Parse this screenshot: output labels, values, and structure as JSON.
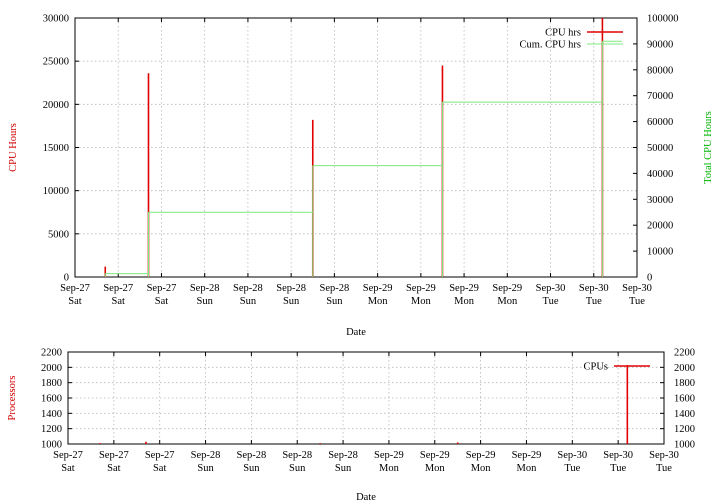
{
  "chart_data": [
    {
      "type": "line",
      "xlabel": "Date",
      "ylabel": "CPU Hours",
      "y2label": "Total CPU Hours",
      "ylim": [
        0,
        30000
      ],
      "y2lim": [
        0,
        100000
      ],
      "yticks": [
        0,
        5000,
        10000,
        15000,
        20000,
        25000,
        30000
      ],
      "y2ticks": [
        0,
        10000,
        20000,
        30000,
        40000,
        50000,
        60000,
        70000,
        80000,
        90000,
        100000
      ],
      "xticks": [
        [
          "Sep-27",
          "Sat"
        ],
        [
          "Sep-27",
          "Sat"
        ],
        [
          "Sep-27",
          "Sat"
        ],
        [
          "Sep-28",
          "Sun"
        ],
        [
          "Sep-28",
          "Sun"
        ],
        [
          "Sep-28",
          "Sun"
        ],
        [
          "Sep-28",
          "Sun"
        ],
        [
          "Sep-29",
          "Mon"
        ],
        [
          "Sep-29",
          "Mon"
        ],
        [
          "Sep-29",
          "Mon"
        ],
        [
          "Sep-29",
          "Mon"
        ],
        [
          "Sep-30",
          "Tue"
        ],
        [
          "Sep-30",
          "Tue"
        ],
        [
          "Sep-30",
          "Tue"
        ]
      ],
      "legend_position": "top-right",
      "grid": true,
      "series": [
        {
          "name": "CPU hrs",
          "axis": "left",
          "color": "#e00000",
          "spikes": [
            [
              0.7,
              1200
            ],
            [
              1.7,
              23600
            ],
            [
              5.5,
              18200
            ],
            [
              8.5,
              24500
            ],
            [
              12.2,
              30000
            ]
          ]
        },
        {
          "name": "Cum. CPU hrs",
          "axis": "right",
          "color": "#7de87d",
          "steps": [
            [
              0.7,
              1.7,
              1300
            ],
            [
              1.7,
              5.5,
              25000
            ],
            [
              5.5,
              8.5,
              43000
            ],
            [
              8.5,
              12.2,
              67500
            ],
            [
              12.2,
              12.65,
              91000
            ]
          ]
        }
      ]
    },
    {
      "type": "line",
      "xlabel": "Date",
      "ylabel": "Processors",
      "ylim": [
        1000,
        2200
      ],
      "y2lim": [
        1000,
        2200
      ],
      "yticks": [
        1000,
        1200,
        1400,
        1600,
        1800,
        2000,
        2200
      ],
      "y2ticks": [
        1000,
        1200,
        1400,
        1600,
        1800,
        2000,
        2200
      ],
      "xticks": [
        [
          "Sep-27",
          "Sat"
        ],
        [
          "Sep-27",
          "Sat"
        ],
        [
          "Sep-27",
          "Sat"
        ],
        [
          "Sep-28",
          "Sun"
        ],
        [
          "Sep-28",
          "Sun"
        ],
        [
          "Sep-28",
          "Sun"
        ],
        [
          "Sep-28",
          "Sun"
        ],
        [
          "Sep-29",
          "Mon"
        ],
        [
          "Sep-29",
          "Mon"
        ],
        [
          "Sep-29",
          "Mon"
        ],
        [
          "Sep-29",
          "Mon"
        ],
        [
          "Sep-30",
          "Tue"
        ],
        [
          "Sep-30",
          "Tue"
        ],
        [
          "Sep-30",
          "Tue"
        ]
      ],
      "legend_position": "top-right",
      "grid": true,
      "series": [
        {
          "name": "CPUs",
          "axis": "left",
          "color": "#e00000",
          "spikes": [
            [
              0.7,
              1012
            ],
            [
              1.7,
              1030
            ],
            [
              5.5,
              1012
            ],
            [
              8.5,
              1020
            ],
            [
              12.2,
              2030
            ]
          ]
        }
      ]
    }
  ]
}
